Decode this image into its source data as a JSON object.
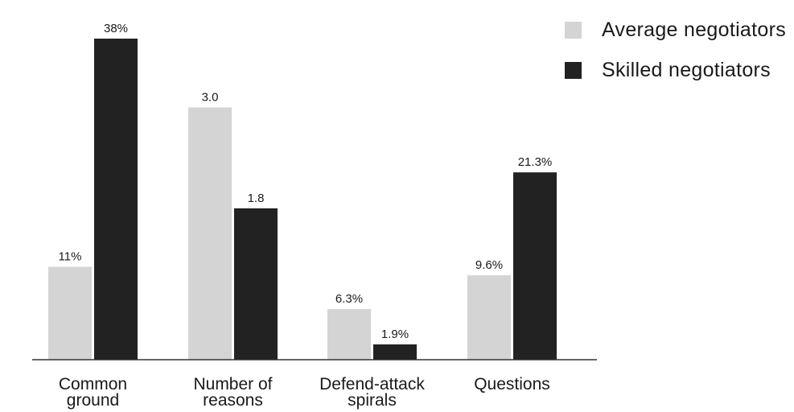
{
  "chart_data": {
    "type": "bar",
    "categories": [
      "Common\nground",
      "Number of\nreasons",
      "Defend-attack\nspirals",
      "Questions"
    ],
    "series": [
      {
        "name": "Average negotiators",
        "color": "#d4d4d4",
        "values": [
          11,
          3.0,
          6.3,
          9.6
        ],
        "labels": [
          "11%",
          "3.0",
          "6.3%",
          "9.6%"
        ]
      },
      {
        "name": "Skilled negotiators",
        "color": "#222222",
        "values": [
          38,
          1.8,
          1.9,
          21.3
        ],
        "labels": [
          "38%",
          "1.8",
          "1.9%",
          "21.3%"
        ]
      }
    ],
    "legend_position": "top-right",
    "grid": false
  }
}
